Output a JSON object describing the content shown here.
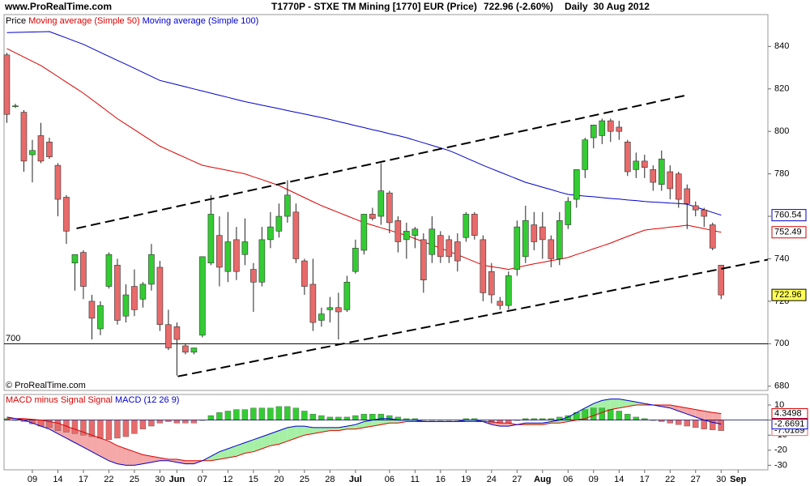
{
  "header": {
    "site": "www.ProRealTime.com",
    "instrument": "T1770P - STXE TM Mining [1770] EUR (Price)",
    "last": "722.96 (-2.60%)",
    "period": "Daily  30 Aug 2012"
  },
  "chart_data": [
    {
      "type": "candlestick",
      "name": "Price",
      "credit": "© ProRealTime.com",
      "up_color": "#33cc33",
      "down_color": "#e86a6a",
      "open": [
        836,
        812,
        809,
        789,
        798,
        795,
        784,
        769,
        738,
        743,
        720,
        707,
        727,
        737,
        713,
        727,
        721,
        728,
        736,
        709,
        708,
        699,
        696,
        704,
        738,
        751,
        734,
        749,
        742,
        735,
        729,
        749,
        753,
        760,
        762,
        739,
        728,
        711,
        716,
        717,
        716,
        734,
        744,
        761,
        760,
        771,
        758,
        749,
        751,
        749,
        742,
        751,
        749,
        748,
        750,
        761,
        749,
        734,
        720,
        718,
        735,
        741,
        756,
        755,
        749,
        740,
        756,
        768,
        782,
        797,
        798,
        805,
        802,
        795,
        782,
        786,
        782,
        775,
        781,
        780,
        773,
        765,
        763,
        756,
        737
      ],
      "high": [
        837,
        813,
        810,
        796,
        804,
        797,
        785,
        770,
        742,
        744,
        723,
        720,
        743,
        740,
        728,
        735,
        729,
        747,
        739,
        716,
        710,
        700,
        698,
        741,
        770,
        760,
        762,
        755,
        759,
        738,
        755,
        762,
        766,
        777,
        766,
        740,
        740,
        717,
        722,
        724,
        732,
        749,
        761,
        764,
        785,
        772,
        760,
        757,
        755,
        752,
        760,
        753,
        751,
        752,
        762,
        762,
        751,
        738,
        722,
        734,
        758,
        765,
        762,
        762,
        751,
        762,
        769,
        782,
        797,
        803,
        806,
        806,
        805,
        796,
        790,
        789,
        784,
        791,
        784,
        781,
        775,
        767,
        764,
        757,
        737
      ],
      "low": [
        804,
        811,
        781,
        776,
        785,
        787,
        760,
        747,
        725,
        721,
        702,
        704,
        726,
        709,
        710,
        713,
        717,
        725,
        706,
        697,
        685,
        695,
        695,
        703,
        737,
        727,
        729,
        730,
        737,
        715,
        727,
        745,
        750,
        757,
        738,
        723,
        706,
        708,
        710,
        702,
        715,
        733,
        742,
        758,
        756,
        752,
        743,
        740,
        745,
        724,
        738,
        738,
        738,
        734,
        748,
        749,
        720,
        719,
        716,
        716,
        732,
        738,
        744,
        740,
        736,
        737,
        754,
        764,
        778,
        792,
        794,
        795,
        796,
        779,
        778,
        778,
        772,
        772,
        768,
        764,
        754,
        760,
        755,
        744,
        721
      ],
      "close": [
        808,
        812,
        786,
        791,
        786,
        788,
        768,
        753,
        742,
        727,
        712,
        718,
        742,
        711,
        723,
        716,
        728,
        742,
        709,
        698,
        702,
        696,
        698,
        741,
        761,
        736,
        748,
        734,
        748,
        729,
        749,
        755,
        760,
        770,
        740,
        727,
        710,
        714,
        717,
        715,
        729,
        745,
        761,
        759,
        772,
        757,
        748,
        753,
        754,
        730,
        754,
        741,
        741,
        739,
        761,
        751,
        724,
        723,
        718,
        732,
        755,
        758,
        748,
        749,
        740,
        758,
        767,
        782,
        796,
        803,
        805,
        800,
        800,
        781,
        786,
        783,
        776,
        787,
        773,
        768,
        766,
        763,
        760,
        745,
        722.96
      ],
      "series": [
        {
          "name": "Moving average (Simple 50)",
          "color": "#dd0000",
          "values": [
            839,
            837,
            835,
            833,
            831,
            828.4,
            825.8,
            823.2,
            820.6,
            818,
            815,
            812,
            809,
            806,
            803.4,
            800.8,
            798.2,
            795.6,
            793,
            791.2,
            789.4,
            787.6,
            785.8,
            784,
            783.2,
            782.4,
            781.6,
            780.8,
            780,
            778.6,
            777.3,
            775.9,
            774.5,
            772.6,
            770.7,
            768.8,
            766.9,
            765,
            763.4,
            761.8,
            760.2,
            758.6,
            757,
            755.8,
            754.6,
            753.4,
            752.2,
            751,
            749.5,
            748,
            746.5,
            745,
            743.5,
            741.9,
            740.3,
            738.6,
            737,
            736.3,
            735.7,
            735,
            735.9,
            736.8,
            737.6,
            738.3,
            739.1,
            739.8,
            740.6,
            742,
            743.3,
            744.7,
            746,
            747.4,
            749,
            750.5,
            752,
            753.5,
            754,
            754.4,
            754.9,
            755.3,
            755.8,
            755,
            754.2,
            753.3,
            752.49
          ]
        },
        {
          "name": "Moving average (Simple 100)",
          "color": "#0000cc",
          "values": [
            846.5,
            846.6,
            846.7,
            846.8,
            846.9,
            847,
            845.5,
            844,
            842.5,
            841,
            839.1,
            837.2,
            835.3,
            833.4,
            831.6,
            829.7,
            827.8,
            825.9,
            824,
            823,
            822,
            821,
            820,
            819,
            818,
            817,
            816,
            815,
            814,
            813.2,
            812.3,
            811.5,
            810.7,
            809.8,
            809,
            808.2,
            807.3,
            806.5,
            805.6,
            804.6,
            803.7,
            802.7,
            801.8,
            800.8,
            799.9,
            798.9,
            798,
            797,
            795.8,
            794.6,
            793.4,
            792.2,
            791,
            789.3,
            787.5,
            785.8,
            784,
            782.4,
            780.8,
            779.2,
            777.6,
            776,
            774.9,
            773.7,
            772.6,
            771.4,
            770.3,
            769.9,
            769.5,
            769.2,
            768.8,
            768.4,
            768.1,
            767.7,
            767.4,
            767,
            766.7,
            766.5,
            766.2,
            766,
            765.7,
            764.4,
            763.1,
            761.8,
            760.54
          ]
        }
      ],
      "xlim": [
        -0.33,
        89.5
      ],
      "ylim": [
        678,
        855
      ],
      "yticks": [
        680,
        700,
        720,
        740,
        760,
        780,
        800,
        820,
        840
      ],
      "xticks": [
        {
          "value": 3,
          "label": "09"
        },
        {
          "value": 6,
          "label": "14"
        },
        {
          "value": 9,
          "label": "17"
        },
        {
          "value": 12,
          "label": "22"
        },
        {
          "value": 15,
          "label": "25"
        },
        {
          "value": 18,
          "label": "30"
        },
        {
          "value": 20,
          "label": "Jun"
        },
        {
          "value": 23,
          "label": "07"
        },
        {
          "value": 26,
          "label": "12"
        },
        {
          "value": 29,
          "label": "15"
        },
        {
          "value": 32,
          "label": "20"
        },
        {
          "value": 35,
          "label": "25"
        },
        {
          "value": 38,
          "label": "28"
        },
        {
          "value": 41,
          "label": "Jul"
        },
        {
          "value": 45,
          "label": "06"
        },
        {
          "value": 48,
          "label": "11"
        },
        {
          "value": 51,
          "label": "16"
        },
        {
          "value": 54,
          "label": "19"
        },
        {
          "value": 57,
          "label": "24"
        },
        {
          "value": 60,
          "label": "27"
        },
        {
          "value": 63,
          "label": "Aug"
        },
        {
          "value": 66,
          "label": "06"
        },
        {
          "value": 69,
          "label": "09"
        },
        {
          "value": 72,
          "label": "14"
        },
        {
          "value": 75,
          "label": "17"
        },
        {
          "value": 78,
          "label": "22"
        },
        {
          "value": 81,
          "label": "27"
        },
        {
          "value": 84,
          "label": "30"
        },
        {
          "value": 86,
          "label": "Sep"
        }
      ],
      "hline": 700,
      "trend_lines": [
        {
          "x": [
            8.2,
            80
          ],
          "y": [
            754.3,
            817.1
          ]
        },
        {
          "x": [
            20.1,
            89.5
          ],
          "y": [
            684.6,
            739.6
          ]
        }
      ]
    },
    {
      "type": "macd",
      "series": [
        {
          "name": "MACD minus Signal",
          "color": "#e86a6a",
          "up_color": "#33cc33",
          "values": [
            1,
            0,
            -1,
            -2.5,
            -4,
            -5,
            -7,
            -8,
            -9,
            -10,
            -11,
            -12,
            -13,
            -12,
            -11,
            -9,
            -6,
            -4,
            -2,
            -1,
            -2,
            -2,
            -2,
            0,
            3,
            5,
            6,
            7,
            7,
            8,
            8,
            8,
            9,
            9,
            8,
            6,
            4,
            3,
            2,
            2,
            2,
            3,
            4,
            4,
            4,
            3,
            2,
            1,
            1,
            0,
            0,
            0,
            0,
            0,
            1,
            1,
            0,
            -2,
            -2,
            -2,
            0,
            1,
            1,
            1,
            1,
            2,
            3,
            5,
            7,
            8,
            8,
            7,
            6,
            4,
            2,
            1,
            0,
            -1,
            -2,
            -3,
            -4,
            -5,
            -6,
            -6.5,
            -7.0189
          ]
        },
        {
          "name": "Signal",
          "color": "#dd0000",
          "values": [
            1,
            1,
            1,
            0.5,
            0,
            -1,
            -2,
            -4,
            -6,
            -8,
            -10,
            -12,
            -14,
            -17,
            -19,
            -21,
            -23,
            -24,
            -25,
            -26,
            -26,
            -27,
            -27,
            -27,
            -27,
            -26,
            -25,
            -24,
            -22,
            -21,
            -19,
            -17,
            -16,
            -14,
            -12,
            -10,
            -9,
            -8,
            -7,
            -7,
            -6,
            -6,
            -5,
            -4,
            -3,
            -2,
            -2,
            -1,
            -1,
            -1,
            -1,
            -1,
            -1,
            -1,
            -1,
            -1,
            -1,
            -1,
            -2,
            -2,
            -3,
            -3,
            -3,
            -3,
            -2,
            -2,
            -1,
            0,
            1,
            3,
            5,
            7,
            8,
            9,
            10,
            10,
            10,
            10,
            10,
            9,
            8,
            7,
            6,
            5,
            4.3498
          ]
        },
        {
          "name": "MACD (12 26 9)",
          "color": "#0000cc",
          "values": [
            2,
            1,
            0,
            -2,
            -4,
            -6,
            -9,
            -12,
            -15,
            -18,
            -21,
            -24,
            -27,
            -29,
            -30,
            -30,
            -29,
            -28,
            -27,
            -27,
            -28,
            -29,
            -29,
            -27,
            -24,
            -21,
            -19,
            -17,
            -15,
            -13,
            -11,
            -9,
            -7,
            -5,
            -4,
            -4,
            -5,
            -5,
            -5,
            -5,
            -4,
            -3,
            -1,
            0,
            1,
            1,
            0,
            0,
            0,
            -1,
            -1,
            -1,
            -1,
            -1,
            0,
            0,
            -1,
            -3,
            -4,
            -4,
            -3,
            -2,
            -2,
            -2,
            -1,
            0,
            2,
            5,
            8,
            11,
            13,
            14,
            14,
            13,
            12,
            11,
            10,
            9,
            8,
            6,
            4,
            2,
            0,
            -1.5,
            -2.6691
          ]
        }
      ],
      "fill_up": "#a6f0a6",
      "fill_down": "#f4a8a8",
      "ylim": [
        -33,
        17
      ],
      "yticks": [
        10,
        0,
        -10,
        -20,
        -30
      ]
    }
  ]
}
